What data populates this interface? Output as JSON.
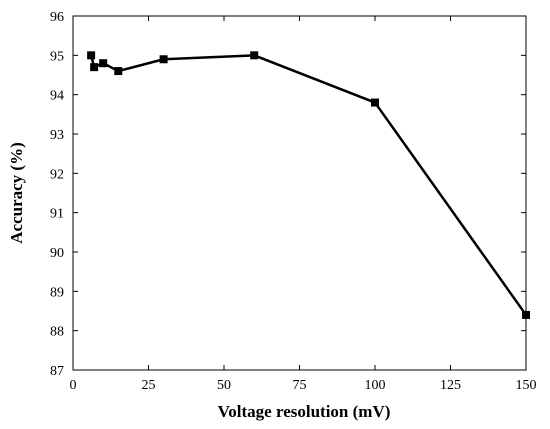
{
  "chart_data": {
    "type": "line",
    "title": "",
    "xlabel": "Voltage resolution  (mV)",
    "ylabel": "Accuracy (%)",
    "xlim": [
      0,
      150
    ],
    "ylim": [
      87,
      96
    ],
    "xticks": [
      0,
      25,
      50,
      75,
      100,
      125,
      150
    ],
    "yticks": [
      87,
      88,
      89,
      90,
      91,
      92,
      93,
      94,
      95,
      96
    ],
    "grid": false,
    "legend": "none",
    "series": [
      {
        "x": [
          6,
          7,
          10,
          15,
          30,
          60,
          100,
          150
        ],
        "y": [
          95.0,
          94.7,
          94.8,
          94.6,
          94.9,
          95.0,
          93.8,
          88.4
        ],
        "color": "#000000",
        "marker": "square"
      }
    ]
  }
}
